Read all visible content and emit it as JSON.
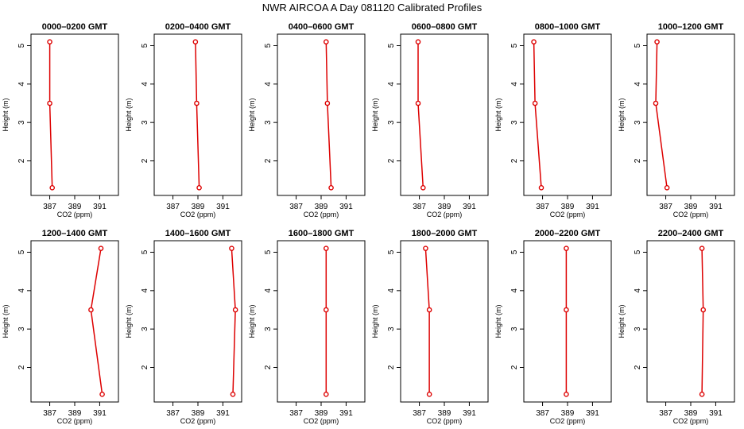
{
  "title": "NWR AIRCOA A  Day 081120  Calibrated Profiles",
  "colors": {
    "series": "#dd0000",
    "axes": "#000000",
    "background": "#ffffff"
  },
  "chart_data": {
    "type": "line",
    "layout": "2 rows x 6 columns of small multiples",
    "xlabel": "CO2 (ppm)",
    "ylabel": "Height (m)",
    "xlim": [
      385.5,
      392.5
    ],
    "ylim": [
      1.1,
      5.3
    ],
    "xticks": [
      387,
      389,
      391
    ],
    "yticks": [
      2,
      3,
      4,
      5
    ],
    "marker": "open circle",
    "grid": false,
    "panels": [
      {
        "title": "0000–0200 GMT",
        "x": [
          387.0,
          387.0,
          387.2
        ],
        "y": [
          5.1,
          3.5,
          1.3
        ]
      },
      {
        "title": "0200–0400 GMT",
        "x": [
          388.8,
          388.9,
          389.1
        ],
        "y": [
          5.1,
          3.5,
          1.3
        ]
      },
      {
        "title": "0400–0600 GMT",
        "x": [
          389.4,
          389.5,
          389.8
        ],
        "y": [
          5.1,
          3.5,
          1.3
        ]
      },
      {
        "title": "0600–0800 GMT",
        "x": [
          386.9,
          386.9,
          387.3
        ],
        "y": [
          5.1,
          3.5,
          1.3
        ]
      },
      {
        "title": "0800–1000 GMT",
        "x": [
          386.3,
          386.4,
          386.9
        ],
        "y": [
          5.1,
          3.5,
          1.3
        ]
      },
      {
        "title": "1000–1200 GMT",
        "x": [
          386.3,
          386.2,
          387.1
        ],
        "y": [
          5.1,
          3.5,
          1.3
        ]
      },
      {
        "title": "1200–1400 GMT",
        "x": [
          391.1,
          390.3,
          391.2
        ],
        "y": [
          5.1,
          3.5,
          1.3
        ]
      },
      {
        "title": "1400–1600 GMT",
        "x": [
          391.7,
          392.0,
          391.8
        ],
        "y": [
          5.1,
          3.5,
          1.3
        ]
      },
      {
        "title": "1600–1800 GMT",
        "x": [
          389.4,
          389.4,
          389.4
        ],
        "y": [
          5.1,
          3.5,
          1.3
        ]
      },
      {
        "title": "1800–2000 GMT",
        "x": [
          387.5,
          387.8,
          387.8
        ],
        "y": [
          5.1,
          3.5,
          1.3
        ]
      },
      {
        "title": "2000–2200 GMT",
        "x": [
          388.9,
          388.9,
          388.9
        ],
        "y": [
          5.1,
          3.5,
          1.3
        ]
      },
      {
        "title": "2200–2400 GMT",
        "x": [
          389.9,
          390.0,
          389.9
        ],
        "y": [
          5.1,
          3.5,
          1.3
        ]
      }
    ]
  }
}
